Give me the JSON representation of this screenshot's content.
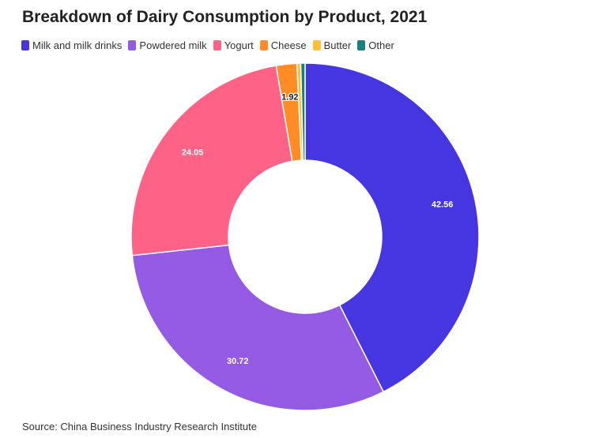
{
  "title": "Breakdown of Dairy Consumption by Product, 2021",
  "source": "Source: China Business Industry Research Institute",
  "chart_data": {
    "type": "pie",
    "style": "donut",
    "categories": [
      "Milk and milk drinks",
      "Powdered milk",
      "Yogurt",
      "Cheese",
      "Butter",
      "Other"
    ],
    "values": [
      42.56,
      30.72,
      24.05,
      1.92,
      0.35,
      0.4
    ],
    "data_labels": [
      "42.56",
      "30.72",
      "24.05",
      "1.92",
      "",
      ""
    ],
    "colors": [
      "#4536e2",
      "#945ae4",
      "#ff6287",
      "#ff8c24",
      "#fec132",
      "#16817d"
    ],
    "legend_position": "top-left",
    "title": "Breakdown of Dairy Consumption by Product, 2021"
  }
}
